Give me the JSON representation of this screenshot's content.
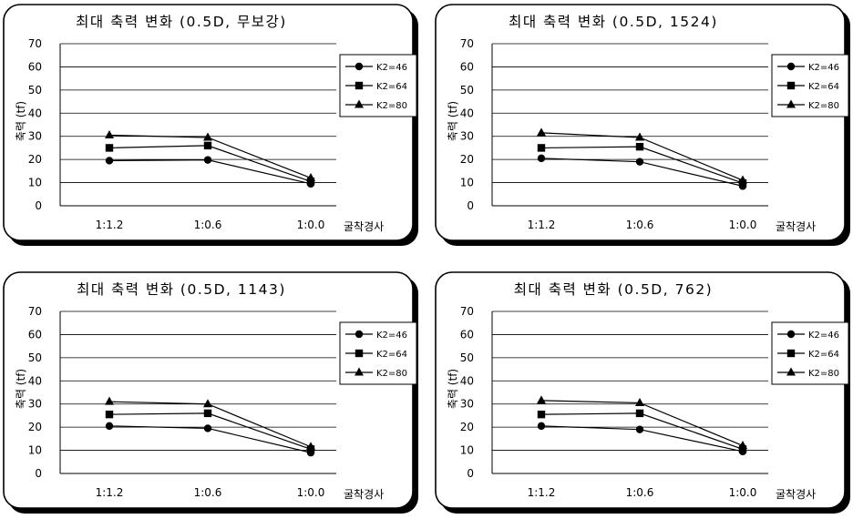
{
  "chart_data": [
    {
      "type": "line",
      "title": "최대 축력 변화 (0.5D, 무보강)",
      "xlabel": "굴착경사",
      "ylabel": "축력 (tf)",
      "categories": [
        "1:1.2",
        "1:0.6",
        "1:0.0"
      ],
      "ylim": [
        0,
        70
      ],
      "yticks": [
        0,
        10,
        20,
        30,
        40,
        50,
        60,
        70
      ],
      "grid": true,
      "legend_position": "right",
      "series": [
        {
          "name": "K2=46",
          "marker": "circle",
          "values": [
            19.5,
            19.8,
            9.5
          ]
        },
        {
          "name": "K2=64",
          "marker": "square",
          "values": [
            25,
            26,
            10.5
          ]
        },
        {
          "name": "K2=80",
          "marker": "triangle",
          "values": [
            30.5,
            29.5,
            12
          ]
        }
      ]
    },
    {
      "type": "line",
      "title": "최대 축력 변화 (0.5D, 1524)",
      "xlabel": "굴착경사",
      "ylabel": "축력 (tf)",
      "categories": [
        "1:1.2",
        "1:0.6",
        "1:0.0"
      ],
      "ylim": [
        0,
        70
      ],
      "yticks": [
        0,
        10,
        20,
        30,
        40,
        50,
        60,
        70
      ],
      "grid": true,
      "legend_position": "right",
      "series": [
        {
          "name": "K2=46",
          "marker": "circle",
          "values": [
            20.5,
            19,
            8.5
          ]
        },
        {
          "name": "K2=64",
          "marker": "square",
          "values": [
            25,
            25.5,
            9.8
          ]
        },
        {
          "name": "K2=80",
          "marker": "triangle",
          "values": [
            31.5,
            29.5,
            11
          ]
        }
      ]
    },
    {
      "type": "line",
      "title": "최대 축력 변화 (0.5D, 1143)",
      "xlabel": "굴착경사",
      "ylabel": "축력 (tf)",
      "categories": [
        "1:1.2",
        "1:0.6",
        "1:0.0"
      ],
      "ylim": [
        0,
        70
      ],
      "yticks": [
        0,
        10,
        20,
        30,
        40,
        50,
        60,
        70
      ],
      "grid": true,
      "legend_position": "right",
      "series": [
        {
          "name": "K2=46",
          "marker": "circle",
          "values": [
            20.5,
            19.5,
            9
          ]
        },
        {
          "name": "K2=64",
          "marker": "square",
          "values": [
            25.5,
            26,
            10.5
          ]
        },
        {
          "name": "K2=80",
          "marker": "triangle",
          "values": [
            31,
            30,
            11.5
          ]
        }
      ]
    },
    {
      "type": "line",
      "title": "최대 축력 변화 (0.5D, 762)",
      "xlabel": "굴착경사",
      "ylabel": "축력 (tf)",
      "categories": [
        "1:1.2",
        "1:0.6",
        "1:0.0"
      ],
      "ylim": [
        0,
        70
      ],
      "yticks": [
        0,
        10,
        20,
        30,
        40,
        50,
        60,
        70
      ],
      "grid": true,
      "legend_position": "right",
      "series": [
        {
          "name": "K2=46",
          "marker": "circle",
          "values": [
            20.5,
            19,
            9.5
          ]
        },
        {
          "name": "K2=64",
          "marker": "square",
          "values": [
            25.5,
            26,
            10.5
          ]
        },
        {
          "name": "K2=80",
          "marker": "triangle",
          "values": [
            31.5,
            30.5,
            12
          ]
        }
      ]
    }
  ]
}
